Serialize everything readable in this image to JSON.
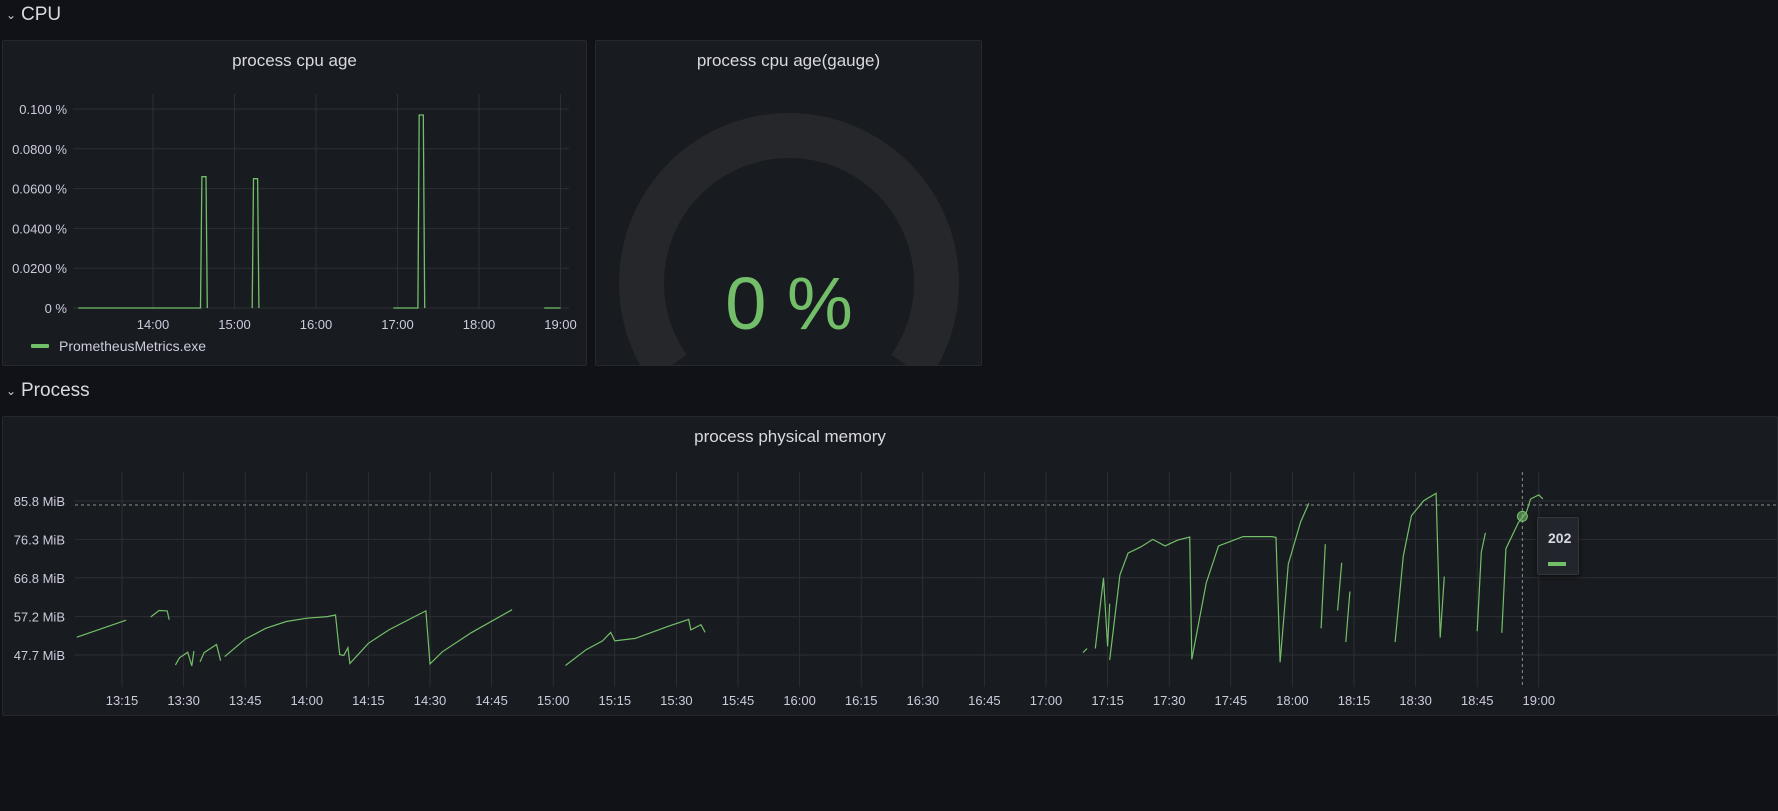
{
  "rows": {
    "cpu": {
      "title": "CPU"
    },
    "process": {
      "title": "Process"
    }
  },
  "icons": {
    "collapse": "chevron-down-icon"
  },
  "colors": {
    "series": "#73bf69",
    "background": "#111217",
    "panel": "#181b1f",
    "gauge_track": "#25272b"
  },
  "panels": {
    "cpu_age": {
      "title": "process cpu age",
      "legend": "PrometheusMetrics.exe"
    },
    "cpu_gauge": {
      "title": "process cpu age(gauge)",
      "value": "0 %",
      "level": 0
    },
    "memory": {
      "title": "process physical memory",
      "tooltip_time": "202"
    }
  },
  "chart_data": [
    {
      "type": "line",
      "title": "process cpu age",
      "series": [
        {
          "name": "PrometheusMetrics.exe",
          "color": "#73bf69"
        }
      ],
      "x_ticks": [
        "14:00",
        "15:00",
        "16:00",
        "17:00",
        "18:00",
        "19:00"
      ],
      "y_ticks": [
        "0 %",
        "0.0200 %",
        "0.0400 %",
        "0.0600 %",
        "0.0800 %",
        "0.100 %"
      ],
      "ylim": [
        0,
        0.1
      ],
      "grid": true,
      "legend": "bottom-left",
      "points": [
        [
          "13:05",
          0
        ],
        [
          "14:35",
          0
        ],
        [
          "14:36",
          0.066
        ],
        [
          "14:39",
          0.066
        ],
        [
          "14:40",
          0
        ],
        [
          "14:58",
          null
        ],
        [
          "15:13",
          0
        ],
        [
          "15:14",
          0.065
        ],
        [
          "15:17",
          0.065
        ],
        [
          "15:18",
          0
        ],
        [
          "15:46",
          null
        ],
        [
          "16:57",
          0
        ],
        [
          "17:15",
          0
        ],
        [
          "17:16",
          0.097
        ],
        [
          "17:19",
          0.097
        ],
        [
          "17:20",
          0
        ],
        [
          "17:59",
          null
        ],
        [
          "18:27",
          0
        ],
        [
          "18:44",
          null
        ],
        [
          "18:48",
          0
        ],
        [
          "19:00",
          0
        ]
      ]
    },
    {
      "type": "line",
      "title": "process physical memory",
      "series": [
        {
          "name": "",
          "color": "#73bf69"
        }
      ],
      "x_ticks": [
        "13:15",
        "13:30",
        "13:45",
        "14:00",
        "14:15",
        "14:30",
        "14:45",
        "15:00",
        "15:15",
        "15:30",
        "15:45",
        "16:00",
        "16:15",
        "16:30",
        "16:45",
        "17:00",
        "17:15",
        "17:30",
        "17:45",
        "18:00",
        "18:15",
        "18:30",
        "18:45",
        "19:00"
      ],
      "y_ticks": [
        "47.7 MiB",
        "57.2 MiB",
        "66.8 MiB",
        "76.3 MiB",
        "85.8 MiB"
      ],
      "grid": true,
      "threshold_dashed": 84.8,
      "segments": [
        [
          [
            "13:04",
            52.1
          ],
          [
            "13:16",
            56.3
          ]
        ],
        [
          [
            "13:22",
            57.1
          ],
          [
            "13:24",
            58.7
          ],
          [
            "13:26",
            58.6
          ],
          [
            "13:26.5",
            56.4
          ]
        ],
        [
          [
            "13:28",
            45.2
          ],
          [
            "13:29",
            47.0
          ],
          [
            "13:31",
            48.4
          ],
          [
            "13:32",
            45.0
          ],
          [
            "13:32.5",
            48.7
          ]
        ],
        [
          [
            "13:34",
            46.0
          ],
          [
            "13:35",
            48.3
          ],
          [
            "13:38",
            50.3
          ],
          [
            "13:39",
            46.3
          ]
        ],
        [
          [
            "13:40",
            47.3
          ],
          [
            "13:45",
            51.6
          ],
          [
            "13:50",
            54.3
          ],
          [
            "13:55",
            56.0
          ],
          [
            "14:00",
            56.8
          ],
          [
            "14:05",
            57.2
          ],
          [
            "14:07",
            57.6
          ],
          [
            "14:08",
            47.8
          ],
          [
            "14:09",
            47.6
          ],
          [
            "14:10",
            49.5
          ],
          [
            "14:10.5",
            45.6
          ],
          [
            "14:15",
            50.6
          ],
          [
            "14:20",
            53.9
          ],
          [
            "14:27",
            57.6
          ],
          [
            "14:29",
            58.6
          ],
          [
            "14:30",
            45.5
          ],
          [
            "14:33",
            48.5
          ],
          [
            "14:40",
            53.2
          ],
          [
            "14:50",
            58.9
          ]
        ],
        [
          [
            "15:03",
            45.1
          ],
          [
            "15:08",
            49.0
          ],
          [
            "15:12",
            51.2
          ],
          [
            "15:14",
            53.3
          ],
          [
            "15:15",
            51.2
          ],
          [
            "15:20",
            51.8
          ],
          [
            "15:28",
            54.8
          ],
          [
            "15:33",
            56.5
          ],
          [
            "15:33.5",
            53.9
          ],
          [
            "15:36",
            55.2
          ],
          [
            "15:37",
            53.3
          ]
        ],
        [
          [
            "17:09",
            48.3
          ],
          [
            "17:10",
            49.3
          ]
        ],
        [
          [
            "17:12",
            49.3
          ],
          [
            "17:14",
            66.8
          ],
          [
            "17:15",
            49.8
          ],
          [
            "17:15.5",
            60.4
          ]
        ],
        [
          [
            "17:15.5",
            46.5
          ],
          [
            "17:18",
            67.5
          ],
          [
            "17:20",
            72.9
          ],
          [
            "17:23",
            74.4
          ],
          [
            "17:26",
            76.3
          ],
          [
            "17:29",
            74.7
          ],
          [
            "17:32",
            76.1
          ],
          [
            "17:35",
            76.9
          ],
          [
            "17:35.5",
            46.6
          ],
          [
            "17:39",
            65.5
          ],
          [
            "17:42",
            74.7
          ],
          [
            "17:48",
            77.0
          ],
          [
            "17:55",
            77.0
          ],
          [
            "17:56",
            76.8
          ],
          [
            "17:57",
            45.9
          ],
          [
            "17:59",
            70.2
          ],
          [
            "18:02",
            80.6
          ],
          [
            "18:04",
            85.2
          ]
        ],
        [
          [
            "18:07",
            54.3
          ],
          [
            "18:08",
            75.1
          ]
        ],
        [
          [
            "18:11",
            58.7
          ],
          [
            "18:12",
            70.5
          ]
        ],
        [
          [
            "18:13",
            50.9
          ],
          [
            "18:14",
            63.4
          ]
        ],
        [
          [
            "18:25",
            50.9
          ],
          [
            "18:27",
            72.2
          ],
          [
            "18:29",
            82.2
          ],
          [
            "18:32",
            85.9
          ],
          [
            "18:35",
            87.7
          ],
          [
            "18:36",
            52.0
          ],
          [
            "18:37",
            67.1
          ]
        ],
        [
          [
            "18:45",
            53.6
          ],
          [
            "18:46",
            73.1
          ],
          [
            "18:47",
            77.9
          ]
        ],
        [
          [
            "18:51",
            53.2
          ],
          [
            "18:52",
            74.0
          ],
          [
            "18:55",
            80.4
          ],
          [
            "18:57",
            83.1
          ],
          [
            "18:58",
            86.3
          ],
          [
            "19:00",
            87.3
          ],
          [
            "19:01",
            86.3
          ]
        ]
      ]
    }
  ]
}
